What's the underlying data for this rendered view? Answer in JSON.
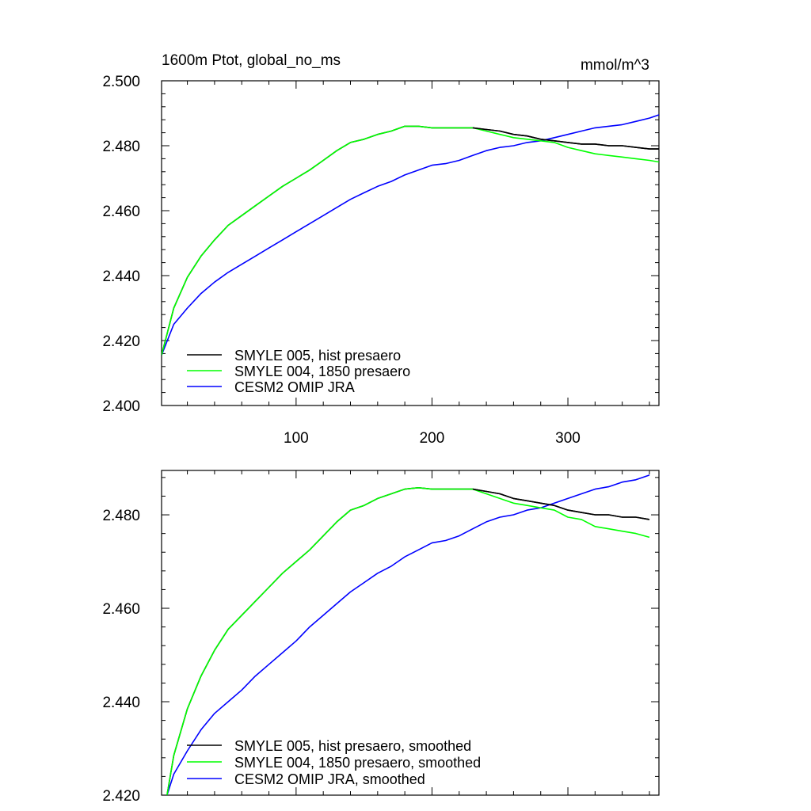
{
  "chart_data": [
    {
      "type": "line",
      "title_left": "1600m Ptot, global_no_ms",
      "title_right": "mmol/m^3",
      "xlim": [
        1,
        367
      ],
      "ylim": [
        2.4,
        2.5
      ],
      "xticks": [
        100,
        200,
        300
      ],
      "xtick_labels": [
        "100",
        "200",
        "300"
      ],
      "yticks": [
        2.4,
        2.42,
        2.44,
        2.46,
        2.48,
        2.5
      ],
      "ytick_labels": [
        "2.400",
        "2.420",
        "2.440",
        "2.460",
        "2.480",
        "2.500"
      ],
      "legend_position": "bottom-left",
      "series": [
        {
          "name": "SMYLE 005, hist presaero",
          "color": "#000000",
          "x": [
            1,
            10,
            20,
            30,
            40,
            50,
            60,
            70,
            80,
            90,
            100,
            110,
            120,
            130,
            140,
            150,
            160,
            170,
            180,
            190,
            200,
            210,
            220,
            230,
            240,
            250,
            260,
            270,
            280,
            290,
            300,
            310,
            320,
            330,
            340,
            350,
            360,
            367
          ],
          "y": [
            2.4155,
            2.43,
            2.4395,
            2.446,
            2.451,
            2.4555,
            2.4585,
            2.4615,
            2.4645,
            2.4675,
            2.47,
            2.4725,
            2.4755,
            2.4785,
            2.481,
            2.482,
            2.4835,
            2.4845,
            2.486,
            2.486,
            2.4855,
            2.4855,
            2.4855,
            2.4855,
            2.485,
            2.4845,
            2.4835,
            2.483,
            2.482,
            2.4815,
            2.481,
            2.4805,
            2.4805,
            2.48,
            2.48,
            2.4795,
            2.479,
            2.479
          ]
        },
        {
          "name": "SMYLE 004, 1850 presaero",
          "color": "#00ff00",
          "x": [
            1,
            10,
            20,
            30,
            40,
            50,
            60,
            70,
            80,
            90,
            100,
            110,
            120,
            130,
            140,
            150,
            160,
            170,
            180,
            190,
            200,
            210,
            220,
            230,
            240,
            250,
            260,
            270,
            280,
            290,
            300,
            310,
            320,
            330,
            340,
            350,
            360,
            367
          ],
          "y": [
            2.4155,
            2.43,
            2.4395,
            2.446,
            2.451,
            2.4555,
            2.4585,
            2.4615,
            2.4645,
            2.4675,
            2.47,
            2.4725,
            2.4755,
            2.4785,
            2.481,
            2.482,
            2.4835,
            2.4845,
            2.486,
            2.486,
            2.4855,
            2.4855,
            2.4855,
            2.4855,
            2.4845,
            2.4835,
            2.4825,
            2.482,
            2.4815,
            2.481,
            2.4795,
            2.4785,
            2.4775,
            2.477,
            2.4765,
            2.476,
            2.4755,
            2.475
          ]
        },
        {
          "name": "CESM2 OMIP JRA",
          "color": "#0000ff",
          "x": [
            1,
            10,
            20,
            30,
            40,
            50,
            60,
            70,
            80,
            90,
            100,
            110,
            120,
            130,
            140,
            150,
            160,
            170,
            180,
            190,
            200,
            210,
            220,
            230,
            240,
            250,
            260,
            270,
            280,
            290,
            300,
            310,
            320,
            330,
            340,
            350,
            360,
            367
          ],
          "y": [
            2.4155,
            2.425,
            2.43,
            2.4345,
            2.438,
            2.441,
            2.4435,
            2.446,
            2.4485,
            2.451,
            2.4535,
            2.456,
            2.4585,
            2.461,
            2.4635,
            2.4655,
            2.4675,
            2.469,
            2.471,
            2.4725,
            2.474,
            2.4745,
            2.4755,
            2.477,
            2.4785,
            2.4795,
            2.48,
            2.481,
            2.4815,
            2.4825,
            2.4835,
            2.4845,
            2.4855,
            2.486,
            2.4865,
            2.4875,
            2.4885,
            2.4895
          ]
        }
      ]
    },
    {
      "type": "line",
      "xlim": [
        1,
        367
      ],
      "ylim": [
        2.42,
        2.4895
      ],
      "xticks": [
        100,
        200,
        300
      ],
      "yticks": [
        2.42,
        2.44,
        2.46,
        2.48
      ],
      "ytick_labels": [
        "2.420",
        "2.440",
        "2.460",
        "2.480"
      ],
      "legend_position": "bottom-left",
      "series": [
        {
          "name": "SMYLE 005, hist presaero, smoothed",
          "color": "#000000",
          "x": [
            5,
            10,
            20,
            30,
            40,
            50,
            60,
            70,
            80,
            90,
            100,
            110,
            120,
            130,
            140,
            150,
            160,
            170,
            180,
            190,
            200,
            210,
            220,
            230,
            240,
            250,
            260,
            270,
            280,
            290,
            300,
            310,
            320,
            330,
            340,
            350,
            360
          ],
          "y": [
            2.42,
            2.4285,
            2.4385,
            2.4455,
            2.451,
            2.4555,
            2.4585,
            2.4615,
            2.4645,
            2.4675,
            2.47,
            2.4725,
            2.4755,
            2.4785,
            2.481,
            2.482,
            2.4835,
            2.4845,
            2.4855,
            2.4858,
            2.4855,
            2.4855,
            2.4855,
            2.4855,
            2.485,
            2.4845,
            2.4835,
            2.483,
            2.4825,
            2.482,
            2.481,
            2.4805,
            2.48,
            2.48,
            2.4795,
            2.4795,
            2.479
          ]
        },
        {
          "name": "SMYLE 004, 1850 presaero, smoothed",
          "color": "#00ff00",
          "x": [
            5,
            10,
            20,
            30,
            40,
            50,
            60,
            70,
            80,
            90,
            100,
            110,
            120,
            130,
            140,
            150,
            160,
            170,
            180,
            190,
            200,
            210,
            220,
            230,
            240,
            250,
            260,
            270,
            280,
            290,
            300,
            310,
            320,
            330,
            340,
            350,
            360
          ],
          "y": [
            2.42,
            2.4285,
            2.4385,
            2.4455,
            2.451,
            2.4555,
            2.4585,
            2.4615,
            2.4645,
            2.4675,
            2.47,
            2.4725,
            2.4755,
            2.4785,
            2.481,
            2.482,
            2.4835,
            2.4845,
            2.4855,
            2.4858,
            2.4855,
            2.4855,
            2.4855,
            2.4855,
            2.4845,
            2.4835,
            2.4825,
            2.482,
            2.4815,
            2.481,
            2.4795,
            2.479,
            2.4775,
            2.477,
            2.4765,
            2.476,
            2.4752
          ]
        },
        {
          "name": "CESM2 OMIP JRA, smoothed",
          "color": "#0000ff",
          "x": [
            5,
            10,
            20,
            30,
            40,
            50,
            60,
            70,
            80,
            90,
            100,
            110,
            120,
            130,
            140,
            150,
            160,
            170,
            180,
            190,
            200,
            210,
            220,
            230,
            240,
            250,
            260,
            270,
            280,
            290,
            300,
            310,
            320,
            330,
            340,
            350,
            360
          ],
          "y": [
            2.42,
            2.4245,
            2.4295,
            2.434,
            2.4375,
            2.44,
            2.4425,
            2.4455,
            2.448,
            2.4505,
            2.453,
            2.456,
            2.4585,
            2.461,
            2.4635,
            2.4655,
            2.4675,
            2.469,
            2.471,
            2.4725,
            2.474,
            2.4745,
            2.4755,
            2.477,
            2.4785,
            2.4795,
            2.48,
            2.481,
            2.4815,
            2.4825,
            2.4835,
            2.4845,
            2.4855,
            2.486,
            2.487,
            2.4875,
            2.4885
          ]
        }
      ]
    }
  ]
}
